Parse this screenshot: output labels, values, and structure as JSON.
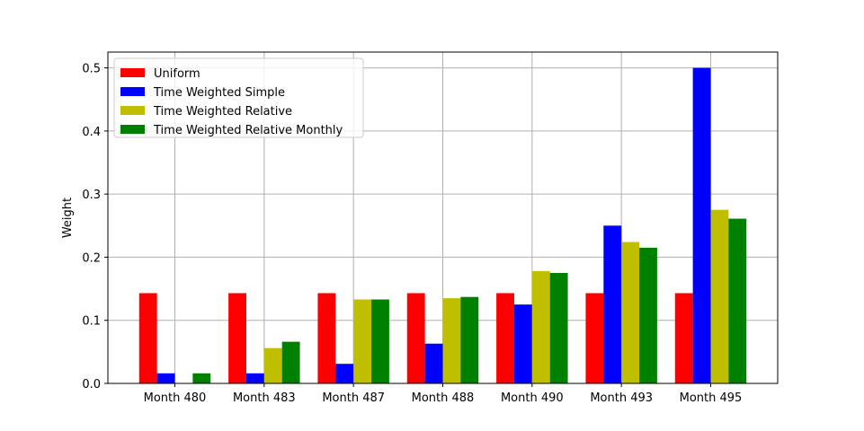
{
  "chart_data": {
    "type": "bar",
    "title": "",
    "xlabel": "",
    "ylabel": "Weight",
    "categories": [
      "Month 480",
      "Month 483",
      "Month 487",
      "Month 488",
      "Month 490",
      "Month 493",
      "Month 495"
    ],
    "ylim": [
      0,
      0.525
    ],
    "yticks": [
      "0.0",
      "0.1",
      "0.2",
      "0.3",
      "0.4",
      "0.5"
    ],
    "grid": true,
    "legend_position": "top-left",
    "series": [
      {
        "name": "Uniform",
        "color": "#ff0000",
        "values": [
          0.143,
          0.143,
          0.143,
          0.143,
          0.143,
          0.143,
          0.143
        ]
      },
      {
        "name": "Time Weighted Simple",
        "color": "#0000ff",
        "values": [
          0.016,
          0.016,
          0.031,
          0.063,
          0.125,
          0.25,
          0.5
        ]
      },
      {
        "name": "Time Weighted Relative",
        "color": "#bfbf00",
        "values": [
          0.0,
          0.056,
          0.133,
          0.135,
          0.178,
          0.224,
          0.275
        ]
      },
      {
        "name": "Time Weighted Relative Monthly",
        "color": "#008000",
        "values": [
          0.016,
          0.066,
          0.133,
          0.137,
          0.175,
          0.215,
          0.261
        ]
      }
    ]
  }
}
